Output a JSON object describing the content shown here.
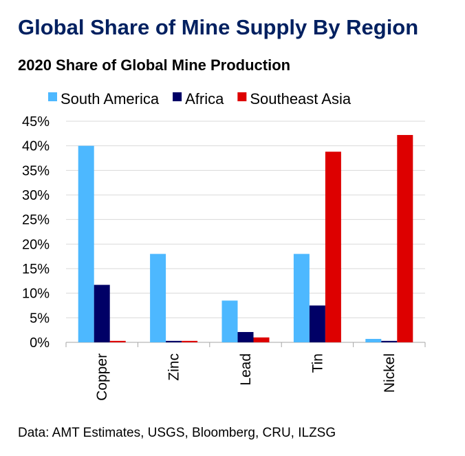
{
  "title": "Global Share of Mine Supply By Region",
  "subtitle": "2020 Share of Global Mine Production",
  "source": "Data: AMT Estimates, USGS, Bloomberg, CRU, ILZSG",
  "chart_data": {
    "type": "bar",
    "categories": [
      "Copper",
      "Zinc",
      "Lead",
      "Tin",
      "Nickel"
    ],
    "series": [
      {
        "name": "South America",
        "color": "#4DB8FF",
        "values": [
          40.0,
          18.0,
          8.5,
          18.0,
          0.7
        ]
      },
      {
        "name": "Africa",
        "color": "#000066",
        "values": [
          11.7,
          0.3,
          2.1,
          7.5,
          0.3
        ]
      },
      {
        "name": "Southeast Asia",
        "color": "#DD0000",
        "values": [
          0.3,
          0.3,
          1.0,
          38.8,
          42.2
        ]
      }
    ],
    "ylim": [
      0,
      45
    ],
    "yticks": [
      0,
      5,
      10,
      15,
      20,
      25,
      30,
      35,
      40,
      45
    ],
    "ytick_labels": [
      "0%",
      "5%",
      "10%",
      "15%",
      "20%",
      "25%",
      "30%",
      "35%",
      "40%",
      "45%"
    ],
    "grid": true,
    "legend_position": "top"
  }
}
